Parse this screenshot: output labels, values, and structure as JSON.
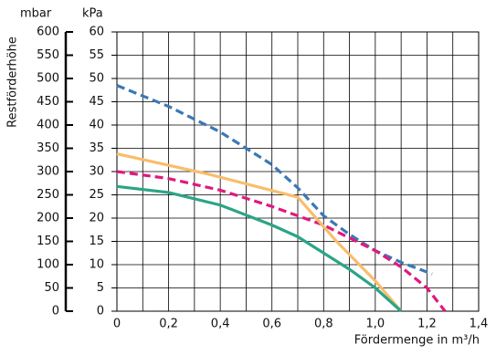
{
  "chart_data": {
    "type": "line",
    "y_title": "Restförderhöhe",
    "y_unit": "mbar",
    "y2_unit": "kPa",
    "x_title": "Fördermenge in m³/h",
    "xlim": [
      0,
      1.4
    ],
    "xticks": [
      0,
      {
        "value": 0.2,
        "label": "0,2"
      },
      {
        "value": 0.4,
        "label": "0,4"
      },
      {
        "value": 0.6,
        "label": "0,6"
      },
      {
        "value": 0.8,
        "label": "0,8"
      },
      {
        "value": 1.0,
        "label": "1,0"
      },
      {
        "value": 1.2,
        "label": "1,2"
      },
      {
        "value": 1.4,
        "label": "1,4"
      }
    ],
    "xminor_ticks": [
      0.1,
      0.3,
      0.5,
      0.7,
      0.9,
      1.1,
      1.3
    ],
    "ylim": [
      0,
      600
    ],
    "yticks": [
      0,
      50,
      100,
      150,
      200,
      250,
      300,
      350,
      400,
      450,
      500,
      550,
      600
    ],
    "y2lim": [
      0,
      60
    ],
    "y2ticks": [
      0,
      5,
      10,
      15,
      20,
      25,
      30,
      35,
      40,
      45,
      50,
      55,
      60
    ],
    "grid": true,
    "series": [
      {
        "color": "#3a78b5",
        "dash": true,
        "x": [
          0,
          0.2,
          0.4,
          0.6,
          0.7,
          0.8,
          0.9,
          1.0,
          1.1,
          1.22
        ],
        "values": [
          485,
          440,
          385,
          315,
          265,
          205,
          165,
          130,
          105,
          80
        ]
      },
      {
        "color": "#e0197d",
        "dash": true,
        "x": [
          0,
          0.2,
          0.4,
          0.6,
          0.8,
          1.0,
          1.1,
          1.2,
          1.27
        ],
        "values": [
          300,
          285,
          260,
          225,
          185,
          130,
          95,
          50,
          0
        ]
      },
      {
        "color": "#f9bd6c",
        "dash": false,
        "x": [
          0,
          0.35,
          0.7,
          0.85,
          1.0,
          1.1
        ],
        "values": [
          338,
          295,
          245,
          150,
          65,
          0
        ]
      },
      {
        "color": "#2aa585",
        "dash": false,
        "x": [
          0,
          0.2,
          0.4,
          0.6,
          0.7,
          0.8,
          0.9,
          1.0,
          1.1
        ],
        "values": [
          268,
          255,
          228,
          185,
          160,
          125,
          90,
          50,
          0
        ]
      }
    ]
  }
}
